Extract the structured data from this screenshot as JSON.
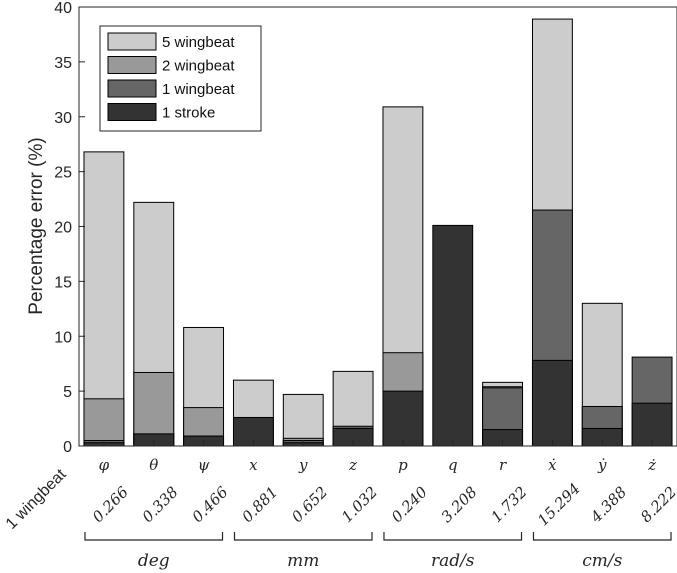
{
  "chart_data": {
    "type": "bar",
    "stacked": false,
    "overlay": true,
    "categories": [
      "φ",
      "θ",
      "ψ",
      "x",
      "y",
      "z",
      "p",
      "q",
      "r",
      "ẋ",
      "ẏ",
      "ż"
    ],
    "series": [
      {
        "name": "5 wingbeat",
        "color": "#cccccc",
        "values": [
          26.8,
          22.2,
          10.8,
          6.0,
          4.7,
          6.8,
          30.9,
          0,
          5.8,
          38.9,
          13.0,
          0
        ]
      },
      {
        "name": "2 wingbeat",
        "color": "#999999",
        "values": [
          4.3,
          6.7,
          3.5,
          0,
          0.7,
          0,
          8.5,
          0,
          5.4,
          0,
          3.6,
          0
        ]
      },
      {
        "name": "1 wingbeat",
        "color": "#666666",
        "values": [
          0.5,
          1.1,
          0.9,
          0,
          0.5,
          1.8,
          0,
          0,
          5.3,
          21.5,
          3.6,
          8.1
        ]
      },
      {
        "name": "1 stroke",
        "color": "#333333",
        "values": [
          0.3,
          1.1,
          0.9,
          2.6,
          0.3,
          1.6,
          5.0,
          20.1,
          1.5,
          7.8,
          1.6,
          3.9
        ]
      }
    ],
    "ylabel": "Percentage error (%)",
    "ylim": [
      0,
      40
    ],
    "yticks": [
      0,
      5,
      10,
      15,
      20,
      25,
      30,
      35,
      40
    ],
    "grid": false,
    "legend_position": "top-left",
    "row_label": "1 wingbeat",
    "row_values": [
      "0.266",
      "0.338",
      "0.466",
      "0.881",
      "0.652",
      "1.032",
      "0.240",
      "3.208",
      "1.732",
      "15.294",
      "4.388",
      "8.222"
    ],
    "unit_groups": [
      {
        "label": "deg",
        "from": 0,
        "to": 2
      },
      {
        "label": "mm",
        "from": 3,
        "to": 5
      },
      {
        "label": "rad/s",
        "from": 6,
        "to": 8
      },
      {
        "label": "cm/s",
        "from": 9,
        "to": 11
      }
    ]
  }
}
